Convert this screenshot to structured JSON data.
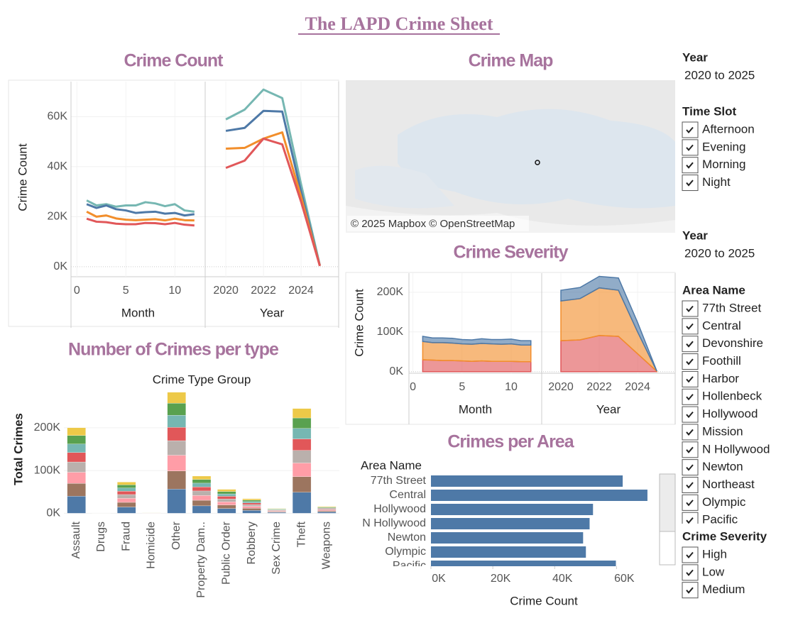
{
  "title": "The LAPD Crime Sheet",
  "chart_data": [
    {
      "type": "line",
      "title": "Crime Count",
      "y_label": "Crime Count",
      "grid": true,
      "ylim": [
        -4000,
        74000
      ],
      "yticks": [
        {
          "value": 0,
          "label": "0K"
        },
        {
          "value": 20000,
          "label": "20K"
        },
        {
          "value": 40000,
          "label": "40K"
        },
        {
          "value": 60000,
          "label": "60K"
        }
      ],
      "panes": [
        {
          "x_label": "Month",
          "x": [
            1,
            2,
            3,
            4,
            5,
            6,
            7,
            8,
            9,
            10,
            11,
            12
          ],
          "xlim": [
            -0.6,
            13.1
          ],
          "xticks": [
            0,
            5,
            10
          ],
          "series": [
            {
              "color": "#76b7b2",
              "values": [
                26500,
                24500,
                25000,
                24000,
                24500,
                24500,
                25800,
                25300,
                24200,
                25000,
                22500,
                22000
              ]
            },
            {
              "color": "#4e79a7",
              "values": [
                25000,
                23500,
                24500,
                23000,
                22500,
                21500,
                21800,
                22000,
                21200,
                21500,
                20500,
                21000
              ]
            },
            {
              "color": "#f28e2b",
              "values": [
                22000,
                20000,
                20500,
                19300,
                18800,
                18600,
                18800,
                19000,
                18500,
                19200,
                18600,
                18500
              ]
            },
            {
              "color": "#e15759",
              "values": [
                19200,
                18000,
                17800,
                17200,
                17000,
                17000,
                17500,
                17400,
                17000,
                17500,
                16800,
                16500
              ]
            }
          ]
        },
        {
          "x_label": "Year",
          "x": [
            2020,
            2021,
            2022,
            2023,
            2024,
            2025
          ],
          "xlim": [
            2018.9,
            2026
          ],
          "xticks": [
            2020,
            2022,
            2024
          ],
          "series": [
            {
              "color": "#76b7b2",
              "values": [
                58900,
                62800,
                70800,
                67400,
                33000,
                500
              ]
            },
            {
              "color": "#4e79a7",
              "values": [
                54300,
                55500,
                62300,
                62000,
                30000,
                400
              ]
            },
            {
              "color": "#f28e2b",
              "values": [
                47200,
                47500,
                51200,
                53700,
                28000,
                350
              ]
            },
            {
              "color": "#e15759",
              "values": [
                39500,
                42400,
                51200,
                48900,
                26000,
                300
              ]
            }
          ]
        }
      ]
    },
    {
      "type": "area",
      "stacked": true,
      "title": "Crime Severity",
      "y_label": "Crime Count",
      "grid": true,
      "ylim": [
        -4000,
        248000
      ],
      "yticks": [
        {
          "value": 0,
          "label": "0K"
        },
        {
          "value": 100000,
          "label": "100K"
        },
        {
          "value": 200000,
          "label": "200K"
        }
      ],
      "panes": [
        {
          "x_label": "Month",
          "x": [
            1,
            2,
            3,
            4,
            5,
            6,
            7,
            8,
            9,
            10,
            11,
            12
          ],
          "xlim": [
            -0.4,
            13.1
          ],
          "xticks": [
            0,
            5,
            10
          ],
          "series": [
            {
              "color": "#e15759",
              "values": [
                30000,
                29000,
                28000,
                28000,
                27000,
                26000,
                27000,
                26000,
                26000,
                26000,
                25000,
                25000
              ]
            },
            {
              "color": "#f28e2b",
              "values": [
                46000,
                44000,
                45000,
                44000,
                43000,
                43000,
                44000,
                44000,
                43000,
                44000,
                42000,
                42000
              ]
            },
            {
              "color": "#4e79a7",
              "values": [
                13000,
                12000,
                12000,
                12000,
                11000,
                11000,
                12000,
                11000,
                12000,
                12000,
                11000,
                11000
              ]
            }
          ]
        },
        {
          "x_label": "Year",
          "x": [
            2020,
            2021,
            2022,
            2023,
            2024,
            2025
          ],
          "xlim": [
            2019,
            2025.96
          ],
          "xticks": [
            2020,
            2022,
            2024
          ],
          "series": [
            {
              "color": "#e15759",
              "values": [
                78000,
                80000,
                91000,
                89000,
                45000,
                1000
              ]
            },
            {
              "color": "#f28e2b",
              "values": [
                100000,
                104000,
                120000,
                116000,
                55000,
                500
              ]
            },
            {
              "color": "#4e79a7",
              "values": [
                27000,
                28000,
                29000,
                31000,
                24000,
                300
              ]
            }
          ]
        }
      ]
    },
    {
      "type": "bar",
      "stacked": true,
      "title": "Number of Crimes per type",
      "x_label": "Crime Type Group",
      "y_label": "Total Crimes",
      "grid": true,
      "categories": [
        "Assault",
        "Drugs",
        "Fraud",
        "Homicide",
        "Other",
        "Property Dam..",
        "Public Order",
        "Robbery",
        "Sex Crime",
        "Theft",
        "Weapons"
      ],
      "ylim": [
        -6000,
        296000
      ],
      "yticks": [
        {
          "value": 0,
          "label": "0K"
        },
        {
          "value": 100000,
          "label": "100K"
        },
        {
          "value": 200000,
          "label": "200K"
        }
      ],
      "series": [
        {
          "color": "#4e79a7",
          "values": [
            40000,
            100,
            14600,
            300,
            56600,
            17400,
            11200,
            6800,
            2200,
            49000,
            3200
          ]
        },
        {
          "color": "#9c755f",
          "values": [
            30000,
            75,
            10950,
            225,
            42450,
            13050,
            8400,
            5100,
            1650,
            36750,
            2400
          ]
        },
        {
          "color": "#ff9da7",
          "values": [
            26000,
            65,
            9490,
            195,
            36790,
            11310,
            7280,
            4420,
            1430,
            31850,
            2080
          ]
        },
        {
          "color": "#bab0ac",
          "values": [
            24000,
            60,
            8760,
            180,
            33960,
            10440,
            6720,
            4080,
            1320,
            29400,
            1920
          ]
        },
        {
          "color": "#e15759",
          "values": [
            22000,
            55,
            8030,
            165,
            31130,
            9570,
            6160,
            3740,
            1210,
            26950,
            1760
          ]
        },
        {
          "color": "#76b7b2",
          "values": [
            20000,
            50,
            7300,
            150,
            28300,
            8700,
            5600,
            3400,
            1100,
            24500,
            1600
          ]
        },
        {
          "color": "#59a14f",
          "values": [
            20000,
            50,
            7300,
            150,
            28300,
            8700,
            5600,
            3400,
            1100,
            24500,
            1600
          ]
        },
        {
          "color": "#edc948",
          "values": [
            18000,
            45,
            6570,
            135,
            25470,
            7830,
            5040,
            3060,
            990,
            22050,
            1440
          ]
        }
      ]
    },
    {
      "type": "hbar",
      "title": "Crimes per Area",
      "category_label": "Area Name",
      "x_label": "Crime Count",
      "color": "#4e79a7",
      "categories": [
        "77th Street",
        "Central",
        "Hollywood",
        "N Hollywood",
        "Newton",
        "Olympic",
        "Pacific"
      ],
      "values": [
        62000,
        70000,
        52400,
        51300,
        49200,
        50100,
        59800
      ],
      "xlim": [
        0,
        73000
      ],
      "xticks": [
        {
          "value": 0,
          "label": "0K"
        },
        {
          "value": 20000,
          "label": "20K"
        },
        {
          "value": 40000,
          "label": "40K"
        },
        {
          "value": 60000,
          "label": "60K"
        }
      ]
    }
  ],
  "map": {
    "title": "Crime Map",
    "attribution": "© 2025 Mapbox © OpenStreetMap"
  },
  "filters": [
    {
      "title": "Year",
      "value": "2020 to 2025"
    },
    {
      "title": "Time Slot",
      "options": [
        "Afternoon",
        "Evening",
        "Morning",
        "Night"
      ]
    },
    {
      "title": "Year",
      "value": "2020 to 2025"
    },
    {
      "title": "Area Name",
      "options": [
        "77th Street",
        "Central",
        "Devonshire",
        "Foothill",
        "Harbor",
        "Hollenbeck",
        "Hollywood",
        "Mission",
        "N Hollywood",
        "Newton",
        "Northeast",
        "Olympic",
        "Pacific"
      ]
    },
    {
      "title": "Crime Severity",
      "options": [
        "High",
        "Low",
        "Medium"
      ]
    }
  ]
}
